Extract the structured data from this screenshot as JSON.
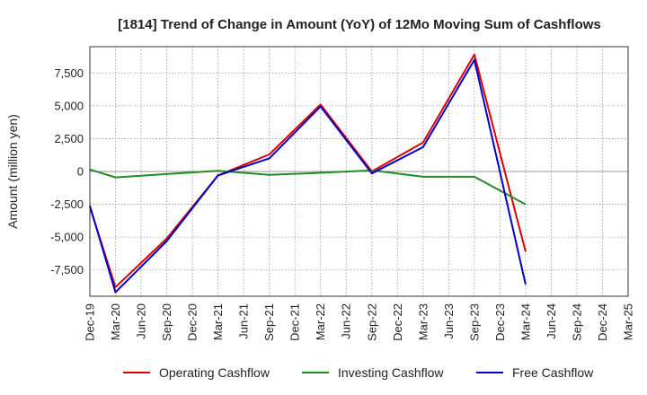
{
  "chart_data": {
    "type": "line",
    "title": "[1814]  Trend of Change in Amount (YoY) of 12Mo Moving Sum of Cashflows",
    "ylabel": "Amount (million yen)",
    "xlabel": "",
    "ylim": [
      -9500,
      9500
    ],
    "yticks": [
      -7500,
      -5000,
      -2500,
      0,
      2500,
      5000,
      7500
    ],
    "ytick_labels": [
      "-7,500",
      "-5,000",
      "-2,500",
      "0",
      "2,500",
      "5,000",
      "7,500"
    ],
    "categories": [
      "Dec-19",
      "Mar-20",
      "Jun-20",
      "Sep-20",
      "Dec-20",
      "Mar-21",
      "Jun-21",
      "Sep-21",
      "Dec-21",
      "Mar-22",
      "Jun-22",
      "Sep-22",
      "Dec-22",
      "Mar-23",
      "Jun-23",
      "Sep-23",
      "Dec-23",
      "Mar-24",
      "Jun-24",
      "Sep-24",
      "Dec-24",
      "Mar-25"
    ],
    "grid": true,
    "legend_position": "bottom",
    "series": [
      {
        "name": "Operating Cashflow",
        "color": "#dd0000",
        "values": [
          -2700,
          -8800,
          null,
          -5100,
          null,
          -300,
          null,
          1300,
          null,
          5100,
          null,
          0,
          null,
          2200,
          null,
          8900,
          null,
          -6100,
          null,
          null,
          null,
          null
        ]
      },
      {
        "name": "Investing Cashflow",
        "color": "#228B22",
        "values": [
          150,
          -450,
          null,
          -200,
          null,
          50,
          null,
          -250,
          null,
          -100,
          null,
          80,
          null,
          -400,
          null,
          -400,
          null,
          -2500,
          null,
          null,
          null,
          null
        ]
      },
      {
        "name": "Free Cashflow",
        "color": "#0000cc",
        "values": [
          -2600,
          -9200,
          null,
          -5300,
          null,
          -300,
          null,
          1000,
          null,
          4950,
          null,
          -150,
          null,
          1850,
          null,
          8500,
          null,
          -8600,
          null,
          null,
          null,
          null
        ]
      }
    ]
  }
}
